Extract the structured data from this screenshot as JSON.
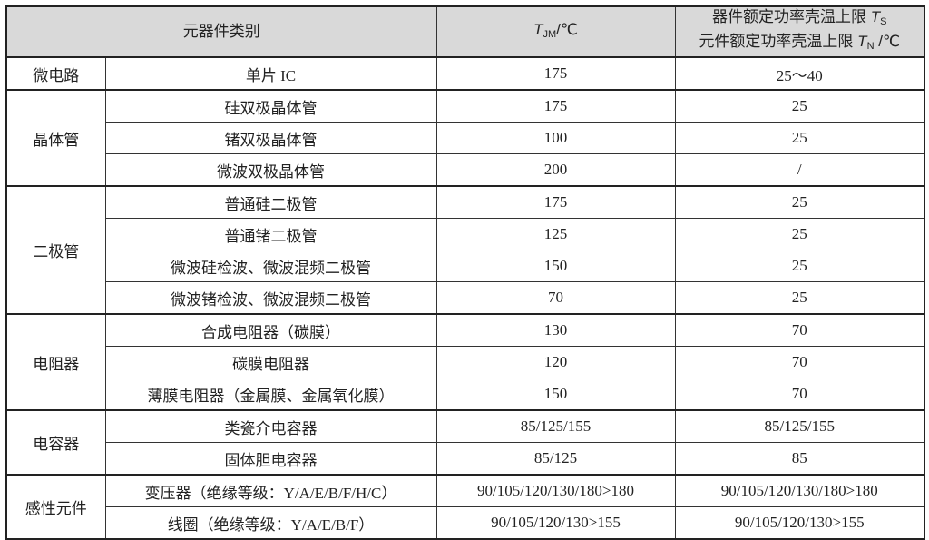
{
  "header": {
    "category": "元器件类别",
    "tjm_symbol": "T",
    "tjm_sub": "JM",
    "tjm_unit": "/℃",
    "ts_line1": "器件额定功率壳温上限 ",
    "ts_symbol": "T",
    "ts_sub": "S",
    "tn_line2": "元件额定功率壳温上限 ",
    "tn_symbol": "T",
    "tn_sub": "N",
    "tn_unit": " /℃"
  },
  "groups": [
    {
      "category": "微电路",
      "items": [
        [
          "单片 IC",
          "175",
          "25～40"
        ]
      ]
    },
    {
      "category": "晶体管",
      "items": [
        [
          "硅双极晶体管",
          "175",
          "25"
        ],
        [
          "锗双极晶体管",
          "100",
          "25"
        ],
        [
          "微波双极晶体管",
          "200",
          "/"
        ]
      ]
    },
    {
      "category": "二极管",
      "items": [
        [
          "普通硅二极管",
          "175",
          "25"
        ],
        [
          "普通锗二极管",
          "125",
          "25"
        ],
        [
          "微波硅检波、微波混频二极管",
          "150",
          "25"
        ],
        [
          "微波锗检波、微波混频二极管",
          "70",
          "25"
        ]
      ]
    },
    {
      "category": "电阻器",
      "items": [
        [
          "合成电阻器（碳膜）",
          "130",
          "70"
        ],
        [
          "碳膜电阻器",
          "120",
          "70"
        ],
        [
          "薄膜电阻器（金属膜、金属氧化膜）",
          "150",
          "70"
        ]
      ]
    },
    {
      "category": "电容器",
      "items": [
        [
          "类瓷介电容器",
          "85/125/155",
          "85/125/155"
        ],
        [
          "固体胆电容器",
          "85/125",
          "85"
        ]
      ]
    },
    {
      "category": "感性元件",
      "items": [
        [
          "变压器（绝缘等级：Y/A/E/B/F/H/C）",
          "90/105/120/130/180>180",
          "90/105/120/130/180>180"
        ],
        [
          "线圈（绝缘等级：Y/A/E/B/F）",
          "90/105/120/130>155",
          "90/105/120/130>155"
        ]
      ]
    }
  ]
}
